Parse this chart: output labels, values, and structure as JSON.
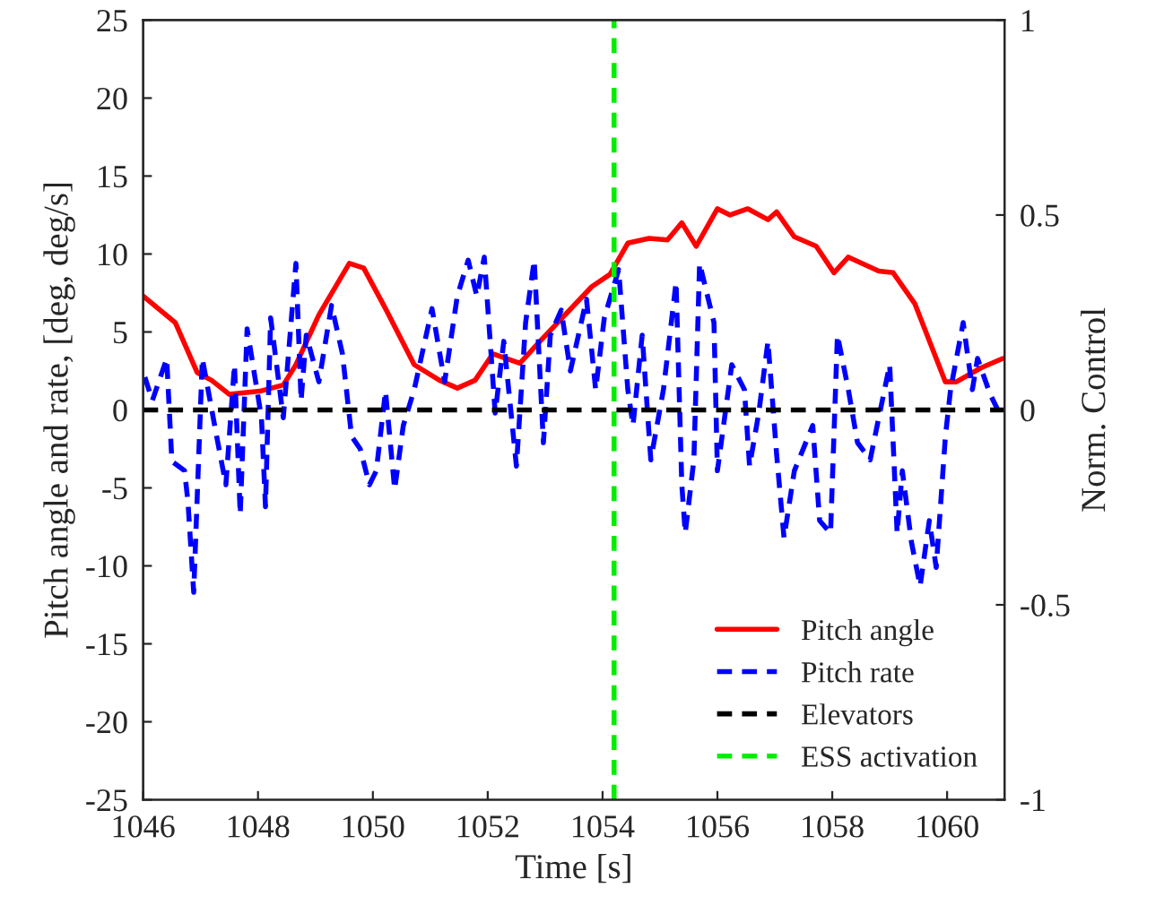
{
  "chart_data": {
    "type": "line",
    "xlabel": "Time [s]",
    "ylabel": "Pitch angle and rate, [deg, deg/s]",
    "y2label": "Norm. Control",
    "xlim": [
      1046,
      1061
    ],
    "xticks": [
      1046,
      1048,
      1050,
      1052,
      1054,
      1056,
      1058,
      1060
    ],
    "ylim": [
      -25,
      25
    ],
    "yticks": [
      -25,
      -20,
      -15,
      -10,
      -5,
      0,
      5,
      10,
      15,
      20,
      25
    ],
    "y2lim": [
      -1,
      1
    ],
    "y2ticks": [
      -1,
      -0.5,
      0,
      0.5,
      1
    ],
    "grid": false,
    "legend": "bottom right",
    "series": [
      {
        "name": "Pitch angle",
        "color": "#ff0000",
        "line_style": "solid",
        "x": [
          1046,
          1046.56,
          1046.94,
          1047.19,
          1047.5,
          1048.03,
          1048.44,
          1048.66,
          1049.06,
          1049.59,
          1049.84,
          1050.22,
          1050.72,
          1051.16,
          1051.47,
          1051.78,
          1052.09,
          1052.56,
          1052.91,
          1053.81,
          1054.13,
          1054.44,
          1054.81,
          1055.13,
          1055.38,
          1055.63,
          1056,
          1056.22,
          1056.53,
          1056.88,
          1057.03,
          1057.34,
          1057.72,
          1058.03,
          1058.28,
          1058.81,
          1059.06,
          1059.44,
          1059.97,
          1060.16,
          1060.59,
          1060.97
        ],
        "values": [
          7.3,
          5.6,
          2.4,
          1.9,
          1.0,
          1.2,
          1.6,
          2.9,
          6.1,
          9.4,
          9.1,
          6.5,
          2.9,
          1.9,
          1.4,
          1.9,
          3.6,
          3.0,
          4.4,
          7.9,
          8.7,
          10.7,
          11.0,
          10.9,
          12.0,
          10.5,
          12.9,
          12.5,
          12.9,
          12.2,
          12.7,
          11.1,
          10.5,
          8.8,
          9.8,
          8.9,
          8.8,
          6.8,
          1.8,
          1.8,
          2.7,
          3.3
        ]
      },
      {
        "name": "Pitch rate",
        "color": "#0000ff",
        "line_style": "dashed",
        "x": [
          1046.03,
          1046.16,
          1046.41,
          1046.5,
          1046.72,
          1046.78,
          1046.88,
          1047.03,
          1047.28,
          1047.44,
          1047.59,
          1047.69,
          1047.81,
          1048.06,
          1048.13,
          1048.22,
          1048.44,
          1048.66,
          1048.75,
          1048.84,
          1049.06,
          1049.28,
          1049.47,
          1049.63,
          1049.78,
          1049.94,
          1050.06,
          1050.22,
          1050.38,
          1050.53,
          1050.72,
          1051.03,
          1051.25,
          1051.47,
          1051.66,
          1051.81,
          1051.94,
          1052.13,
          1052.28,
          1052.5,
          1052.66,
          1052.81,
          1052.97,
          1053.09,
          1053.28,
          1053.44,
          1053.72,
          1053.88,
          1054.03,
          1054.28,
          1054.44,
          1054.53,
          1054.69,
          1054.84,
          1055.06,
          1055.28,
          1055.38,
          1055.44,
          1055.59,
          1055.69,
          1055.94,
          1056,
          1056.25,
          1056.47,
          1056.56,
          1056.72,
          1056.88,
          1057.03,
          1057.16,
          1057.34,
          1057.66,
          1057.78,
          1057.97,
          1058.09,
          1058.28,
          1058.44,
          1058.66,
          1058.81,
          1059,
          1059.13,
          1059.22,
          1059.38,
          1059.53,
          1059.69,
          1059.81,
          1059.97,
          1060.06,
          1060.28,
          1060.44,
          1060.53,
          1060.75,
          1060.91
        ],
        "values": [
          2.1,
          0.6,
          3.3,
          -3.3,
          -3.9,
          -5.9,
          -11.7,
          3.3,
          -1.7,
          -4.8,
          2.9,
          -6.7,
          5.2,
          -0.5,
          -6.2,
          5.9,
          -0.5,
          9.4,
          0.6,
          4.8,
          1.8,
          6.7,
          3.6,
          -1.7,
          -2.5,
          -4.8,
          -3.9,
          1.2,
          -5.1,
          -1.0,
          1.3,
          6.5,
          1.8,
          7.3,
          9.6,
          7.3,
          9.8,
          -0.2,
          4.4,
          -3.6,
          5.6,
          9.6,
          -2.1,
          4.8,
          6.4,
          2.5,
          7.1,
          1.3,
          5.9,
          9.0,
          1.3,
          -1.0,
          4.8,
          -3.2,
          1.3,
          8.2,
          -4.8,
          -7.9,
          -3.2,
          9.4,
          5.6,
          -3.9,
          2.9,
          1.3,
          -3.6,
          -0.2,
          4.4,
          -2.8,
          -8.2,
          -3.9,
          -1.0,
          -7.1,
          -7.9,
          4.8,
          1.3,
          -2.1,
          -3.2,
          -0.5,
          2.9,
          -7.9,
          -3.9,
          -8.5,
          -11.3,
          -7.1,
          -10.1,
          -1.7,
          1.3,
          5.6,
          1.3,
          3.3,
          1.0,
          -0.2
        ]
      },
      {
        "name": "Elevators",
        "color": "#000000",
        "line_style": "dashed",
        "axis": "y2",
        "x": [
          1046,
          1061
        ],
        "values": [
          0,
          0
        ]
      },
      {
        "name": "ESS activation",
        "color": "#00ee00",
        "line_style": "dashed",
        "x": [
          1054.2,
          1054.2
        ],
        "values": [
          -25,
          25
        ]
      }
    ]
  }
}
